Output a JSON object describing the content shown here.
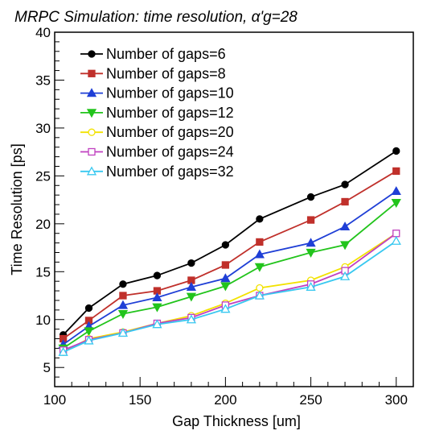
{
  "chart_data": {
    "type": "line",
    "title": "MRPC Simulation: time resolution, α'g=28",
    "xlabel": "Gap Thickness [um]",
    "ylabel": "Time Resolution [ps]",
    "xlim": [
      100,
      310
    ],
    "ylim": [
      3,
      40
    ],
    "xticks": [
      100,
      150,
      200,
      250,
      300
    ],
    "yticks": [
      5,
      10,
      15,
      20,
      25,
      30,
      35,
      40
    ],
    "grid": false,
    "legend_position": "top-left",
    "x": [
      105,
      120,
      140,
      160,
      180,
      200,
      220,
      250,
      270,
      300
    ],
    "series": [
      {
        "name": "Number of gaps=6",
        "color": "#000000",
        "marker": "circle-filled",
        "values": [
          8.4,
          11.2,
          13.7,
          14.6,
          15.9,
          17.8,
          20.5,
          22.8,
          24.1,
          27.6
        ]
      },
      {
        "name": "Number of gaps=8",
        "color": "#c0302b",
        "marker": "square-filled",
        "values": [
          8.0,
          9.9,
          12.5,
          13.0,
          14.1,
          15.7,
          18.1,
          20.4,
          22.3,
          25.5
        ]
      },
      {
        "name": "Number of gaps=10",
        "color": "#1f3fd6",
        "marker": "triangle-up-filled",
        "values": [
          7.4,
          9.3,
          11.5,
          12.3,
          13.4,
          14.3,
          16.8,
          18.0,
          19.7,
          23.4
        ]
      },
      {
        "name": "Number of gaps=12",
        "color": "#22c41c",
        "marker": "triangle-down-filled",
        "values": [
          7.0,
          8.8,
          10.6,
          11.3,
          12.4,
          13.5,
          15.5,
          17.0,
          17.8,
          22.2
        ]
      },
      {
        "name": "Number of gaps=20",
        "color": "#f2e200",
        "marker": "circle-open",
        "values": [
          6.6,
          8.0,
          8.7,
          9.6,
          10.4,
          11.7,
          13.3,
          14.1,
          15.5,
          19.0
        ]
      },
      {
        "name": "Number of gaps=24",
        "color": "#c040c0",
        "marker": "square-open",
        "values": [
          6.8,
          7.9,
          8.6,
          9.6,
          10.2,
          11.5,
          12.5,
          13.7,
          15.1,
          19.0
        ]
      },
      {
        "name": "Number of gaps=32",
        "color": "#38c8f0",
        "marker": "triangle-up-open",
        "values": [
          6.6,
          7.8,
          8.6,
          9.5,
          10.0,
          11.1,
          12.5,
          13.4,
          14.5,
          18.2
        ]
      }
    ]
  }
}
